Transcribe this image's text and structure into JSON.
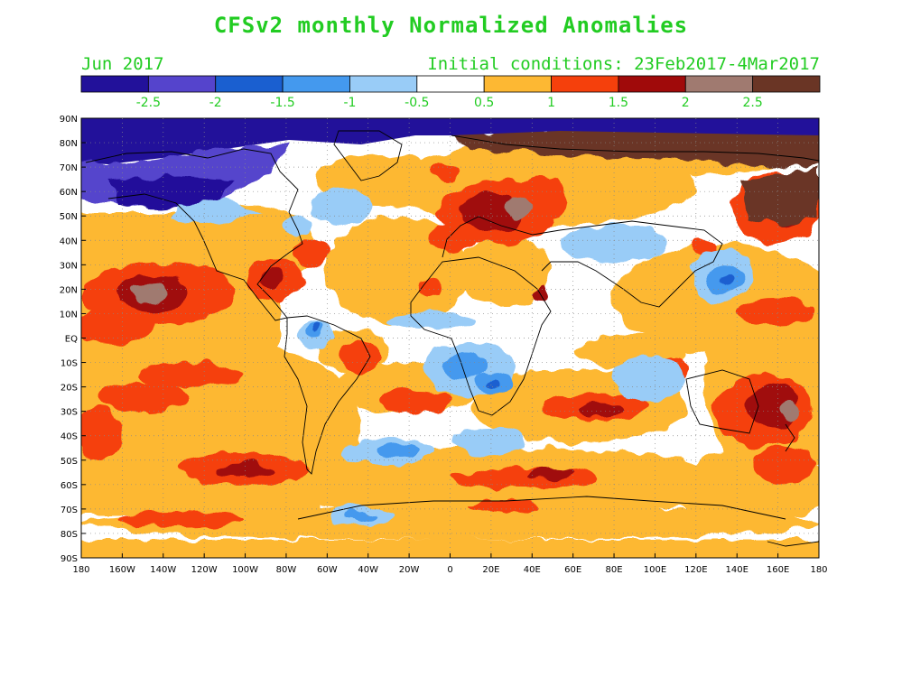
{
  "title": "CFSv2 monthly Normalized Anomalies",
  "month": "Jun 2017",
  "initial_conditions": "Initial conditions: 23Feb2017-4Mar2017",
  "colorbar": {
    "colors": [
      "#22119a",
      "#5544cc",
      "#1a5fd0",
      "#4499ee",
      "#99ccf7",
      "#ffffff",
      "#fdb833",
      "#f5400c",
      "#a00a0a",
      "#a07a70",
      "#6a3525"
    ],
    "labels": [
      "-2.5",
      "-2",
      "-1.5",
      "-1",
      "-0.5",
      "0.5",
      "1",
      "1.5",
      "2",
      "2.5"
    ]
  },
  "map": {
    "lat_labels": [
      "90N",
      "80N",
      "70N",
      "60N",
      "50N",
      "40N",
      "30N",
      "20N",
      "10N",
      "EQ",
      "10S",
      "20S",
      "30S",
      "40S",
      "50S",
      "60S",
      "70S",
      "80S",
      "90S"
    ],
    "lon_labels": [
      "180",
      "160W",
      "140W",
      "120W",
      "100W",
      "80W",
      "60W",
      "40W",
      "20W",
      "0",
      "20E",
      "40E",
      "60E",
      "80E",
      "100E",
      "120E",
      "140E",
      "160E",
      "180"
    ]
  }
}
